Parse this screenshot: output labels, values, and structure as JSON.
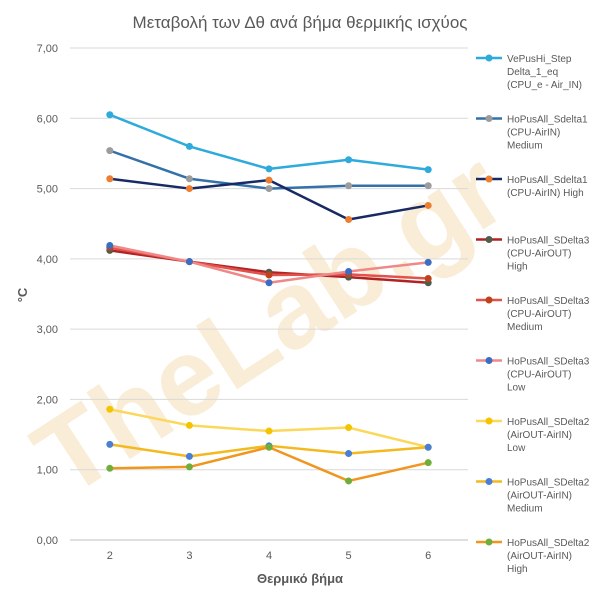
{
  "chart_data": {
    "type": "line",
    "title": "Μεταβολή των Δθ ανά βήμα  θερμικής ισχύος",
    "xlabel": "Θερμικό βήμα",
    "ylabel": "°C",
    "watermark": "TheLab.gr",
    "categories": [
      "2",
      "3",
      "4",
      "5",
      "6"
    ],
    "ylim": [
      0,
      7
    ],
    "yticks": [
      "0,00",
      "1,00",
      "2,00",
      "3,00",
      "4,00",
      "5,00",
      "6,00",
      "7,00"
    ],
    "grid": true,
    "legend_position": "right",
    "series": [
      {
        "name_lines": [
          "VePusHi_Step",
          "Delta_1_eq",
          "(CPU_e - Air_IN)"
        ],
        "color": "#2eaadc",
        "marker_color": "#2eaadc",
        "values": [
          6.05,
          5.6,
          5.28,
          5.41,
          5.27
        ]
      },
      {
        "name_lines": [
          "HoPusAll_Sdelta1",
          "(CPU-AirIN)",
          "Medium"
        ],
        "color": "#3471a8",
        "marker_color": "#9c9c9c",
        "values": [
          5.54,
          5.14,
          5.0,
          5.04,
          5.04
        ]
      },
      {
        "name_lines": [
          "HoPusAll_Sdelta1",
          "(CPU-AirIN) High"
        ],
        "color": "#172a63",
        "marker_color": "#ed7d31",
        "values": [
          5.14,
          5.0,
          5.12,
          4.56,
          4.76
        ]
      },
      {
        "name_lines": [
          "HoPusAll_SDelta3",
          "(CPU-AirOUT)",
          "High"
        ],
        "color": "#b22222",
        "marker_color": "#4e5d4e",
        "values": [
          4.12,
          3.96,
          3.81,
          3.74,
          3.66
        ]
      },
      {
        "name_lines": [
          "HoPusAll_SDelta3",
          "(CPU-AirOUT)",
          "Medium"
        ],
        "color": "#e0524c",
        "marker_color": "#c0421b",
        "values": [
          4.16,
          3.96,
          3.77,
          3.78,
          3.72
        ]
      },
      {
        "name_lines": [
          "HoPusAll_SDelta3",
          "(CPU-AirOUT)",
          "Low"
        ],
        "color": "#f08888",
        "marker_color": "#3b6ec2",
        "values": [
          4.19,
          3.96,
          3.66,
          3.82,
          3.95
        ]
      },
      {
        "name_lines": [
          "HoPusAll_SDelta2",
          "(AirOUT-AirIN)",
          "Low"
        ],
        "color": "#fbd85a",
        "marker_color": "#f5c400",
        "values": [
          1.86,
          1.63,
          1.55,
          1.6,
          1.32
        ]
      },
      {
        "name_lines": [
          "HoPusAll_SDelta2",
          "(AirOUT-AirIN)",
          "Medium"
        ],
        "color": "#f3b91f",
        "marker_color": "#4a7fd4",
        "values": [
          1.36,
          1.19,
          1.34,
          1.23,
          1.32
        ]
      },
      {
        "name_lines": [
          "HoPusAll_SDelta2",
          "(AirOUT-AirIN)",
          "High"
        ],
        "color": "#f0961e",
        "marker_color": "#6fae3b",
        "values": [
          1.02,
          1.04,
          1.32,
          0.84,
          1.1
        ]
      }
    ]
  }
}
